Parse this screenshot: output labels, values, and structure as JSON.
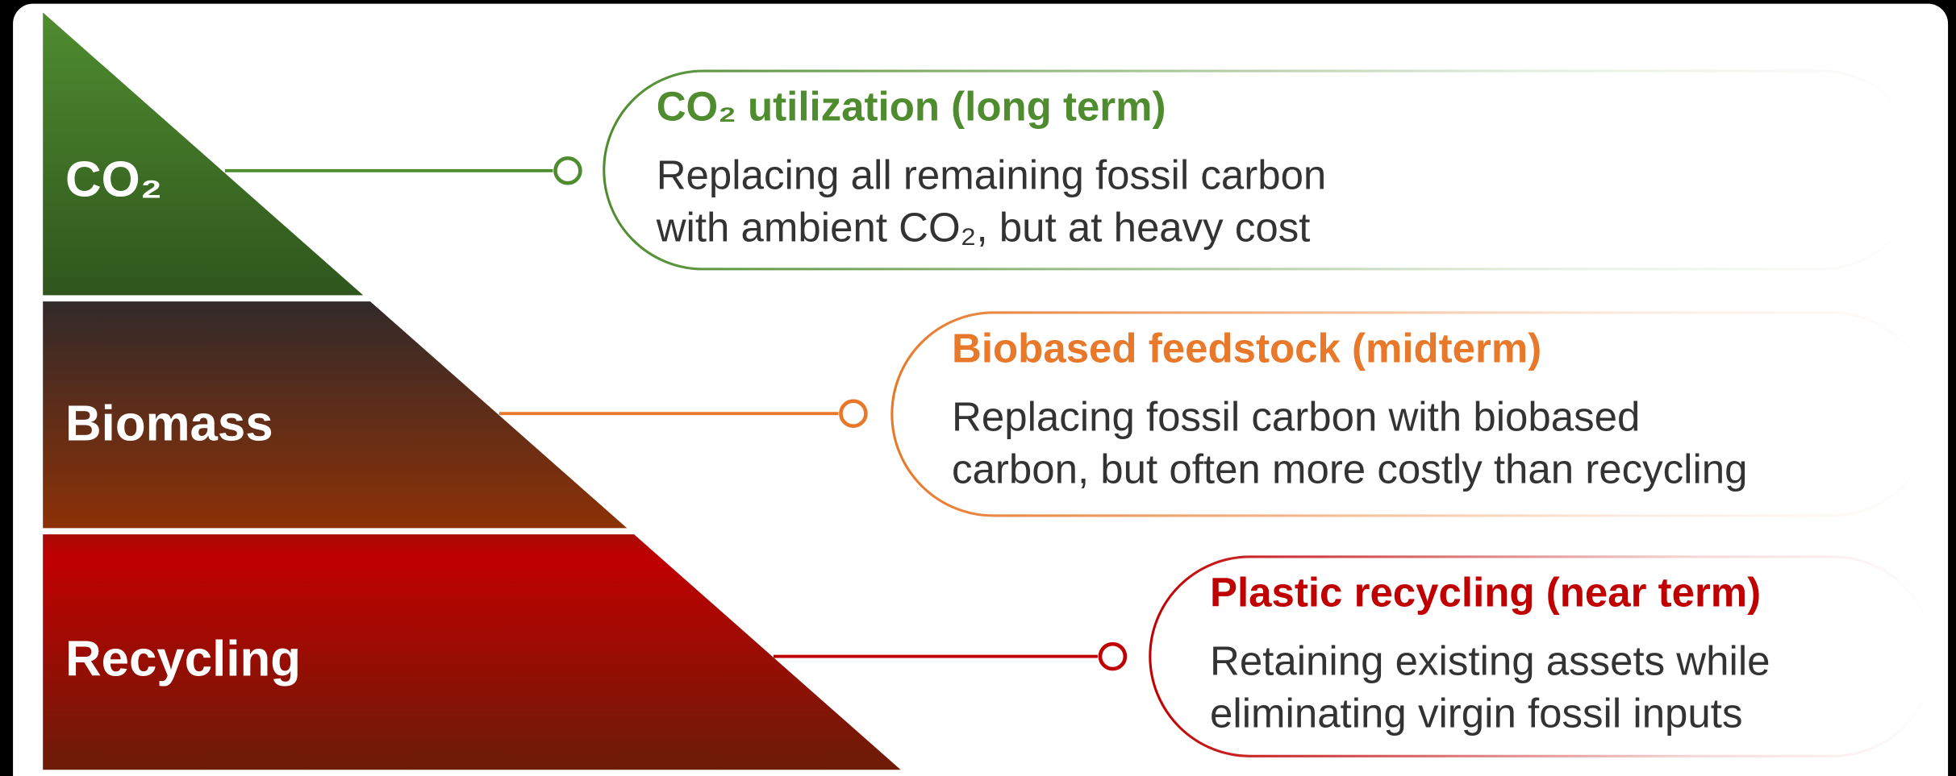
{
  "levels": [
    {
      "label": "CO₂",
      "heading": "CO₂ utilization (long term)",
      "description": [
        "Replacing all remaining fossil carbon",
        "with ambient CO₂, but at heavy cost"
      ]
    },
    {
      "label": "Biomass",
      "heading": "Biobased feedstock (midterm)",
      "description": [
        "Replacing fossil carbon with biobased",
        "carbon, but often more costly than recycling"
      ]
    },
    {
      "label": "Recycling",
      "heading": "Plastic recycling (near term)",
      "description": [
        "Retaining existing assets while",
        "eliminating virgin fossil inputs"
      ]
    }
  ]
}
